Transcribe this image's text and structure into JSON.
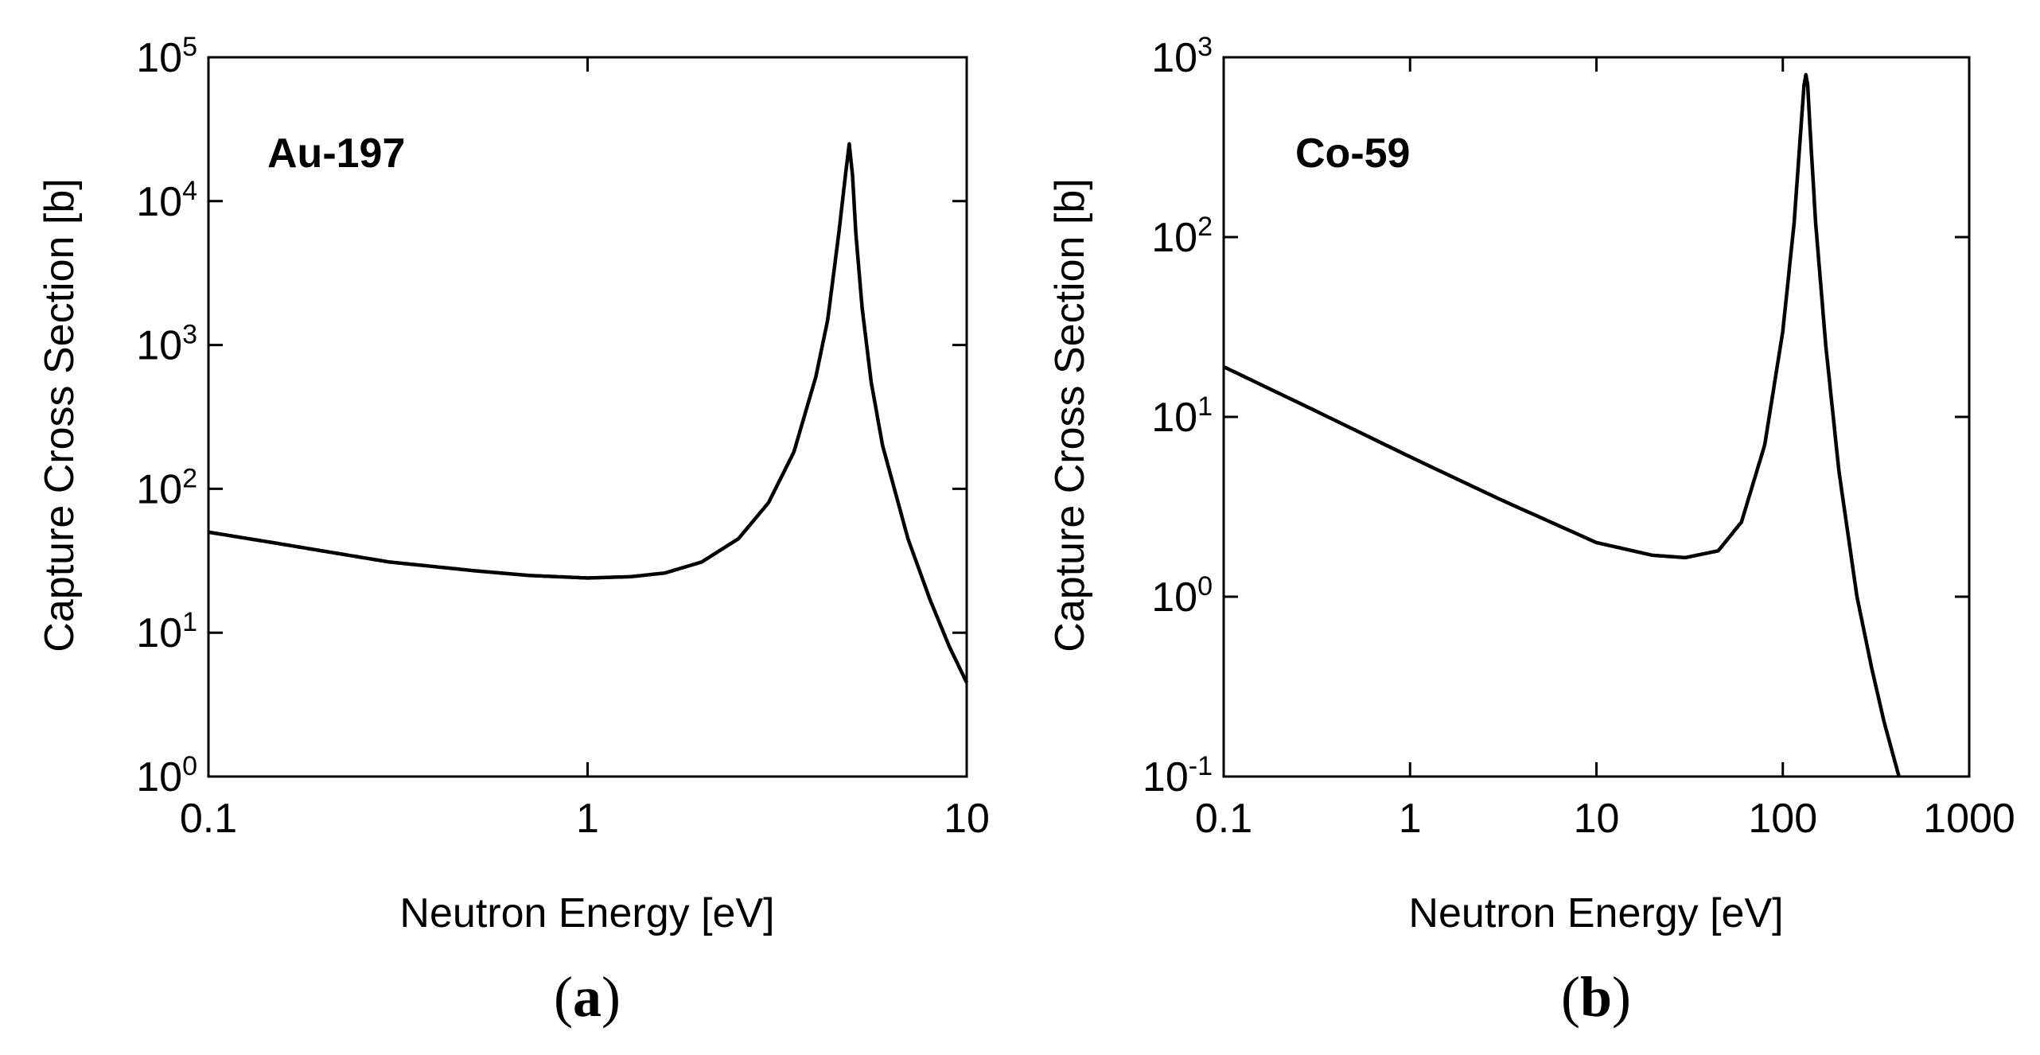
{
  "chart_data": [
    {
      "type": "line",
      "panel": "(a)",
      "annotation": "Au-197",
      "xlabel": "Neutron Energy [eV]",
      "ylabel": "Capture Cross Section [b]",
      "xscale": "log",
      "yscale": "log",
      "xlim": [
        0.1,
        10
      ],
      "ylim": [
        1,
        100000
      ],
      "xticks": [
        {
          "value": 0.1,
          "label": "0.1"
        },
        {
          "value": 1,
          "label": "1"
        },
        {
          "value": 10,
          "label": "10"
        }
      ],
      "yticks": [
        {
          "value": 1,
          "base": "10",
          "exp": "0"
        },
        {
          "value": 10,
          "base": "10",
          "exp": "1"
        },
        {
          "value": 100,
          "base": "10",
          "exp": "2"
        },
        {
          "value": 1000,
          "base": "10",
          "exp": "3"
        },
        {
          "value": 10000,
          "base": "10",
          "exp": "4"
        },
        {
          "value": 100000,
          "base": "10",
          "exp": "5"
        }
      ],
      "series": [
        {
          "name": "Au-197 capture",
          "x": [
            0.1,
            0.15,
            0.2,
            0.3,
            0.5,
            0.7,
            1.0,
            1.3,
            1.6,
            2.0,
            2.5,
            3.0,
            3.5,
            4.0,
            4.3,
            4.6,
            4.8,
            4.9,
            5.0,
            5.1,
            5.3,
            5.6,
            6.0,
            7.0,
            8.0,
            9.0,
            10.0
          ],
          "y": [
            50,
            42,
            37,
            31,
            27,
            25,
            24,
            24.5,
            26,
            31,
            45,
            80,
            180,
            600,
            1500,
            6000,
            16000,
            25000,
            15000,
            6000,
            1800,
            550,
            200,
            45,
            17,
            8,
            4.5
          ]
        }
      ]
    },
    {
      "type": "line",
      "panel": "(b)",
      "annotation": "Co-59",
      "xlabel": "Neutron Energy [eV]",
      "ylabel": "Capture Cross Section [b]",
      "xscale": "log",
      "yscale": "log",
      "xlim": [
        0.1,
        1000
      ],
      "ylim": [
        0.1,
        1000
      ],
      "xticks": [
        {
          "value": 0.1,
          "label": "0.1"
        },
        {
          "value": 1,
          "label": "1"
        },
        {
          "value": 10,
          "label": "10"
        },
        {
          "value": 100,
          "label": "100"
        },
        {
          "value": 1000,
          "label": "1000"
        }
      ],
      "yticks": [
        {
          "value": 0.1,
          "base": "10",
          "exp": "-1"
        },
        {
          "value": 1,
          "base": "10",
          "exp": "0"
        },
        {
          "value": 10,
          "base": "10",
          "exp": "1"
        },
        {
          "value": 100,
          "base": "10",
          "exp": "2"
        },
        {
          "value": 1000,
          "base": "10",
          "exp": "3"
        }
      ],
      "series": [
        {
          "name": "Co-59 capture",
          "x": [
            0.1,
            0.3,
            1,
            3,
            10,
            20,
            30,
            45,
            60,
            80,
            100,
            115,
            125,
            130,
            133,
            136,
            140,
            150,
            170,
            200,
            250,
            300,
            350,
            420
          ],
          "y": [
            19,
            11,
            6,
            3.5,
            2.0,
            1.7,
            1.65,
            1.8,
            2.6,
            7,
            30,
            120,
            400,
            700,
            800,
            700,
            400,
            120,
            25,
            5,
            1,
            0.4,
            0.2,
            0.1
          ]
        }
      ]
    }
  ],
  "panel_labels": {
    "a": {
      "open": "(",
      "letter": "a",
      "close": ")"
    },
    "b": {
      "open": "(",
      "letter": "b",
      "close": ")"
    }
  }
}
